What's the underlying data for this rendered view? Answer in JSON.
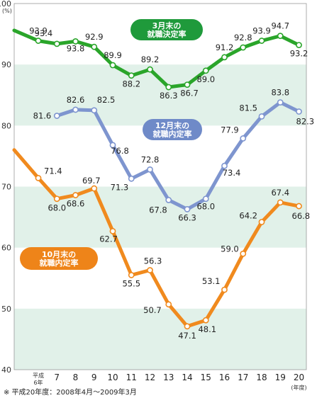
{
  "chart_data": {
    "type": "line",
    "x_ticks": [
      "平成\n6年",
      "7",
      "8",
      "9",
      "10",
      "11",
      "12",
      "13",
      "14",
      "15",
      "16",
      "17",
      "18",
      "19",
      "20"
    ],
    "x_unit": "(年度)",
    "y_unit": "(%)",
    "ylim": [
      40,
      100
    ],
    "y_ticks": [
      40,
      50,
      60,
      70,
      80,
      90,
      100
    ],
    "grid": "horizontal bands",
    "series": [
      {
        "name": "3月末の\n就職決定率",
        "color": "#2aa52a",
        "label_bg": "#1f9a3b",
        "lead_in": 95.6,
        "values": [
          93.9,
          93.4,
          93.8,
          92.9,
          89.9,
          88.2,
          89.2,
          86.3,
          86.7,
          89.0,
          91.2,
          92.8,
          93.9,
          94.7,
          93.2
        ],
        "labels": [
          "93.9",
          "93.4",
          "93.8",
          "92.9",
          "89.9",
          "88.2",
          "89.2",
          "86.3",
          "86.7",
          "89.0",
          "91.2",
          "92.8",
          "93.9",
          "94.7",
          "93.2"
        ]
      },
      {
        "name": "12月末の\n就職内定率",
        "color": "#7e95cf",
        "label_bg": "#6f8ac8",
        "values": [
          null,
          81.6,
          82.6,
          82.5,
          76.8,
          71.3,
          72.8,
          67.8,
          66.3,
          68.0,
          73.4,
          77.9,
          81.5,
          83.8,
          82.3
        ],
        "labels": [
          null,
          "81.6",
          "82.6",
          "82.5",
          "76.8",
          "71.3",
          "72.8",
          "67.8",
          "66.3",
          "68.0",
          "73.4",
          "77.9",
          "81.5",
          "83.8",
          "82.3"
        ]
      },
      {
        "name": "10月末の\n就職内定率",
        "color": "#f08a1e",
        "label_bg": "#ee8419",
        "lead_in": 76.0,
        "values": [
          71.4,
          68.0,
          68.6,
          69.7,
          62.7,
          55.5,
          56.3,
          50.7,
          47.1,
          48.1,
          53.1,
          59.0,
          64.2,
          67.4,
          66.8
        ],
        "labels": [
          "71.4",
          "68.0",
          "68.6",
          "69.7",
          "62.7",
          "55.5",
          "56.3",
          "50.7",
          "47.1",
          "48.1",
          "53.1",
          "59.0",
          "64.2",
          "67.4",
          "66.8"
        ]
      }
    ],
    "footnote": "※ 平成20年度：2008年4月〜2009年3月"
  }
}
